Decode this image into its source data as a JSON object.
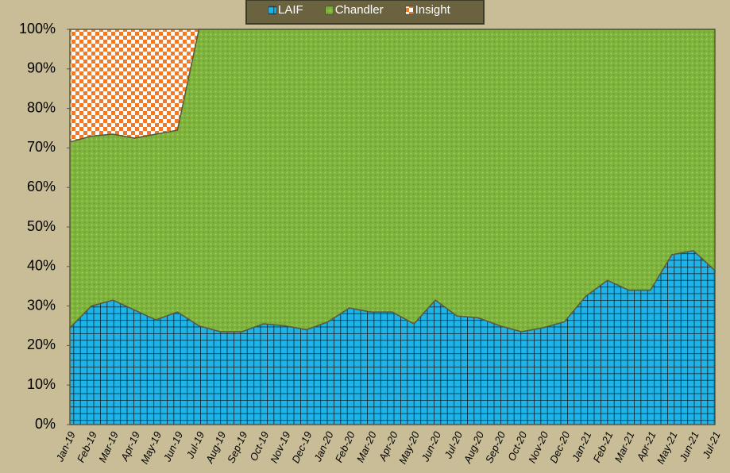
{
  "chart_data": {
    "type": "stacked-area-100",
    "categories": [
      "Jan-19",
      "Feb-19",
      "Mar-19",
      "Apr-19",
      "May-19",
      "Jun-19",
      "Jul-19",
      "Aug-19",
      "Sep-19",
      "Oct-19",
      "Nov-19",
      "Dec-19",
      "Jan-20",
      "Feb-20",
      "Mar-20",
      "Apr-20",
      "May-20",
      "Jun-20",
      "Jul-20",
      "Aug-20",
      "Sep-20",
      "Oct-20",
      "Nov-20",
      "Dec-20",
      "Jan-21",
      "Feb-21",
      "Mar-21",
      "Apr-21",
      "May-21",
      "Jun-21",
      "Jul-21"
    ],
    "series": [
      {
        "name": "LAIF",
        "color": "#1fb4e8",
        "values": [
          24.5,
          30,
          31.5,
          29,
          26.5,
          28.5,
          25,
          23.5,
          23.5,
          25.5,
          25,
          24,
          26,
          29.5,
          28.5,
          28.5,
          25.5,
          31.5,
          27.5,
          27,
          25,
          23.5,
          24.5,
          26,
          32.5,
          36.5,
          34,
          34,
          43,
          44,
          39
        ]
      },
      {
        "name": "Chandler",
        "color": "#7fb43c",
        "values": [
          47,
          43,
          42,
          43.5,
          47,
          46,
          75,
          76.5,
          76.5,
          74.5,
          75,
          76,
          74,
          70.5,
          71.5,
          71.5,
          74.5,
          68.5,
          72.5,
          73,
          75,
          76.5,
          75.5,
          74,
          67.5,
          63.5,
          66,
          66,
          57,
          56,
          61
        ]
      },
      {
        "name": "Insight",
        "color": "#f07a28",
        "values": [
          28.5,
          27,
          26.5,
          27.5,
          26.5,
          25.5,
          0,
          0,
          0,
          0,
          0,
          0,
          0,
          0,
          0,
          0,
          0,
          0,
          0,
          0,
          0,
          0,
          0,
          0,
          0,
          0,
          0,
          0,
          0,
          0,
          0
        ]
      }
    ],
    "ylim": [
      0,
      100
    ],
    "yticks": [
      {
        "value": 0,
        "label": "0%"
      },
      {
        "value": 10,
        "label": "10%"
      },
      {
        "value": 20,
        "label": "20%"
      },
      {
        "value": 30,
        "label": "30%"
      },
      {
        "value": 40,
        "label": "40%"
      },
      {
        "value": 50,
        "label": "50%"
      },
      {
        "value": 60,
        "label": "60%"
      },
      {
        "value": 70,
        "label": "70%"
      },
      {
        "value": 80,
        "label": "80%"
      },
      {
        "value": 90,
        "label": "90%"
      },
      {
        "value": 100,
        "label": "100%"
      }
    ],
    "legend": "top"
  }
}
